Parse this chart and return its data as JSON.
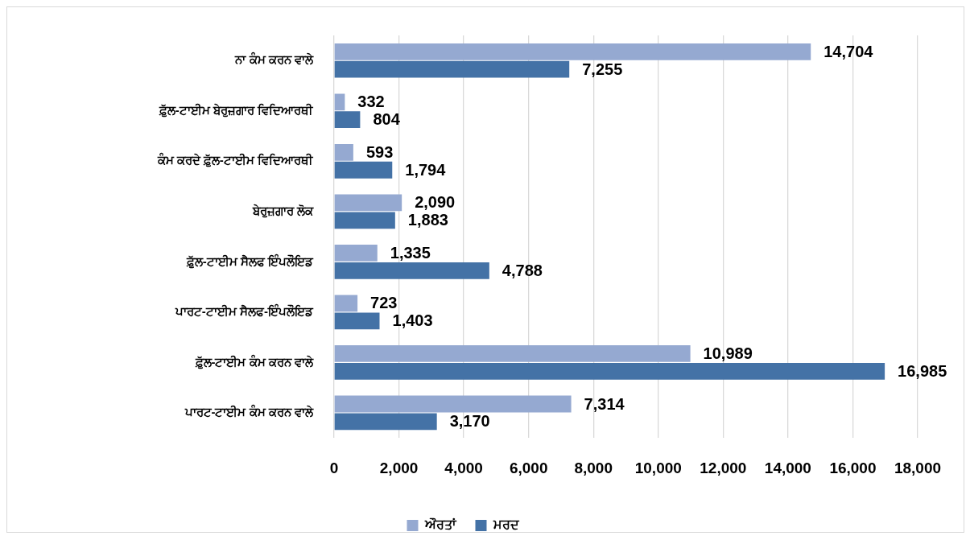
{
  "chart_data": {
    "type": "bar",
    "orientation": "horizontal",
    "categories": [
      "ਨਾ ਕੰਮ ਕਰਨ ਵਾਲੇ",
      "ਫ਼ੁੱਲ-ਟਾਈਮ ਬੇਰੁਜ਼ਗਾਰ ਵਿਦਿਆਰਥੀ",
      "ਕੰਮ ਕਰਦੇ ਫ਼ੁੱਲ-ਟਾਈਮ ਵਿਦਿਆਰਥੀ",
      "ਬੇਰੁਜ਼ਗਾਰ ਲੋਕ",
      "ਫ਼ੁੱਲ-ਟਾਈਮ ਸੈਲਫ ਇੰਪਲੌਇਡ",
      "ਪਾਰਟ-ਟਾਈਮ ਸੈਲਫ-ਇੰਪਲੌਇਡ",
      "ਫ਼ੁੱਲ-ਟਾਈਮ ਕੰਮ ਕਰਨ ਵਾਲੇ",
      "ਪਾਰਟ-ਟਾਈਮ ਕੰਮ ਕਰਨ ਵਾਲੇ"
    ],
    "series": [
      {
        "name": "ਔਰਤਾਂ",
        "color": "#95a9d1",
        "values": [
          14704,
          332,
          593,
          2090,
          1335,
          723,
          10989,
          7314
        ],
        "value_labels": [
          "14,704",
          "332",
          "593",
          "2,090",
          "1,335",
          "723",
          "10,989",
          "7,314"
        ]
      },
      {
        "name": "ਮਰਦ",
        "color": "#4472a6",
        "values": [
          7255,
          804,
          1794,
          1883,
          4788,
          1403,
          16985,
          3170
        ],
        "value_labels": [
          "7,255",
          "804",
          "1,794",
          "1,883",
          "4,788",
          "1,403",
          "16,985",
          "3,170"
        ]
      }
    ],
    "xlim": [
      0,
      18000
    ],
    "xticks": [
      0,
      {
        "value": 2000,
        "label": "2,000"
      },
      {
        "value": 4000,
        "label": "4,000"
      },
      {
        "value": 6000,
        "label": "6,000"
      },
      {
        "value": 8000,
        "label": "8,000"
      },
      {
        "value": 10000,
        "label": "10,000"
      },
      {
        "value": 12000,
        "label": "12,000"
      },
      {
        "value": 14000,
        "label": "14,000"
      },
      {
        "value": 16000,
        "label": "16,000"
      },
      {
        "value": 18000,
        "label": "18,000"
      }
    ],
    "grid": "x",
    "legend": "bottom"
  }
}
